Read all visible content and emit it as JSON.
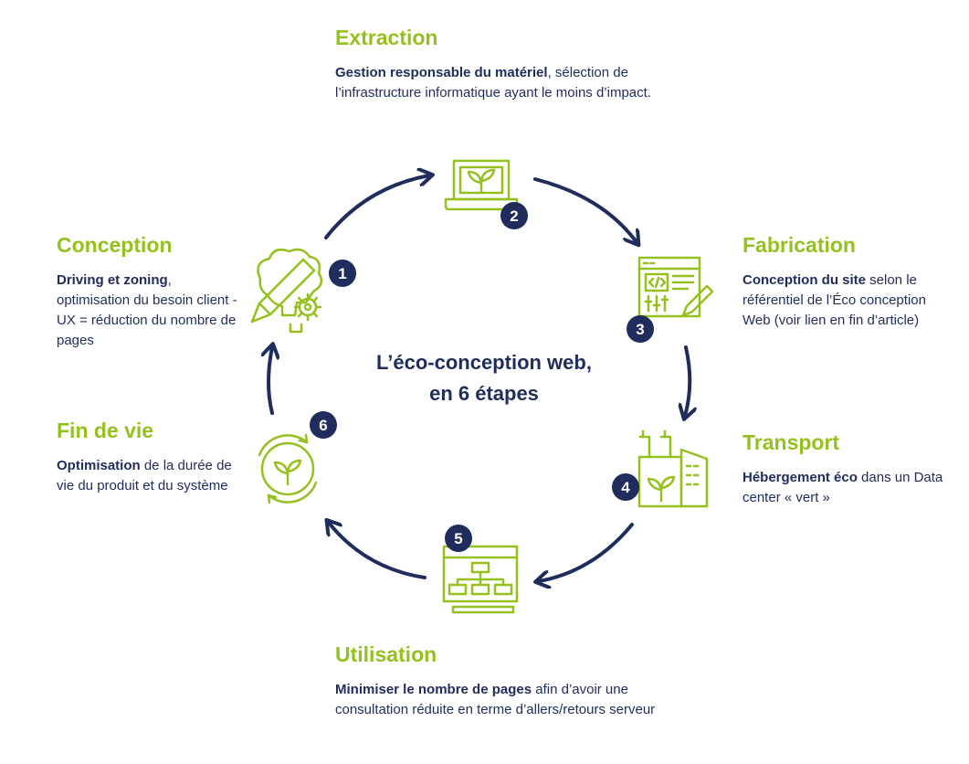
{
  "center": {
    "line1": "L’éco-conception web,",
    "line2": "en 6 étapes"
  },
  "colors": {
    "accent": "#95c11f",
    "navy": "#1f2c5c"
  },
  "steps": [
    {
      "number": "1",
      "title": "Conception",
      "bold": "Driving et zoning",
      "rest": ", optimisation du besoin client - UX = réduction du nombre de pages",
      "icon": "brain-pencil-gear-icon"
    },
    {
      "number": "2",
      "title": "Extraction",
      "bold": "Gestion responsable du matériel",
      "rest": ", sélection de l’infrastructure informatique ayant le moins d’impact.",
      "icon": "laptop-leaf-icon"
    },
    {
      "number": "3",
      "title": "Fabrication",
      "bold": "Conception du site",
      "rest": " selon le référentiel de l’Éco conception Web (voir lien en fin d’article)",
      "icon": "code-window-pencil-icon"
    },
    {
      "number": "4",
      "title": "Transport",
      "bold": "Hébergement éco",
      "rest": " dans un Data center « vert »",
      "icon": "factory-leaf-icon"
    },
    {
      "number": "5",
      "title": "Utilisation",
      "bold": "Minimiser le nombre de pages",
      "rest": " afin d’avoir une consultation réduite en terme d’allers/retours serveur",
      "icon": "sitemap-window-icon"
    },
    {
      "number": "6",
      "title": "Fin de vie",
      "bold": "Optimisation",
      "rest": " de la durée de vie du produit et du système",
      "icon": "recycle-leaf-icon"
    }
  ]
}
